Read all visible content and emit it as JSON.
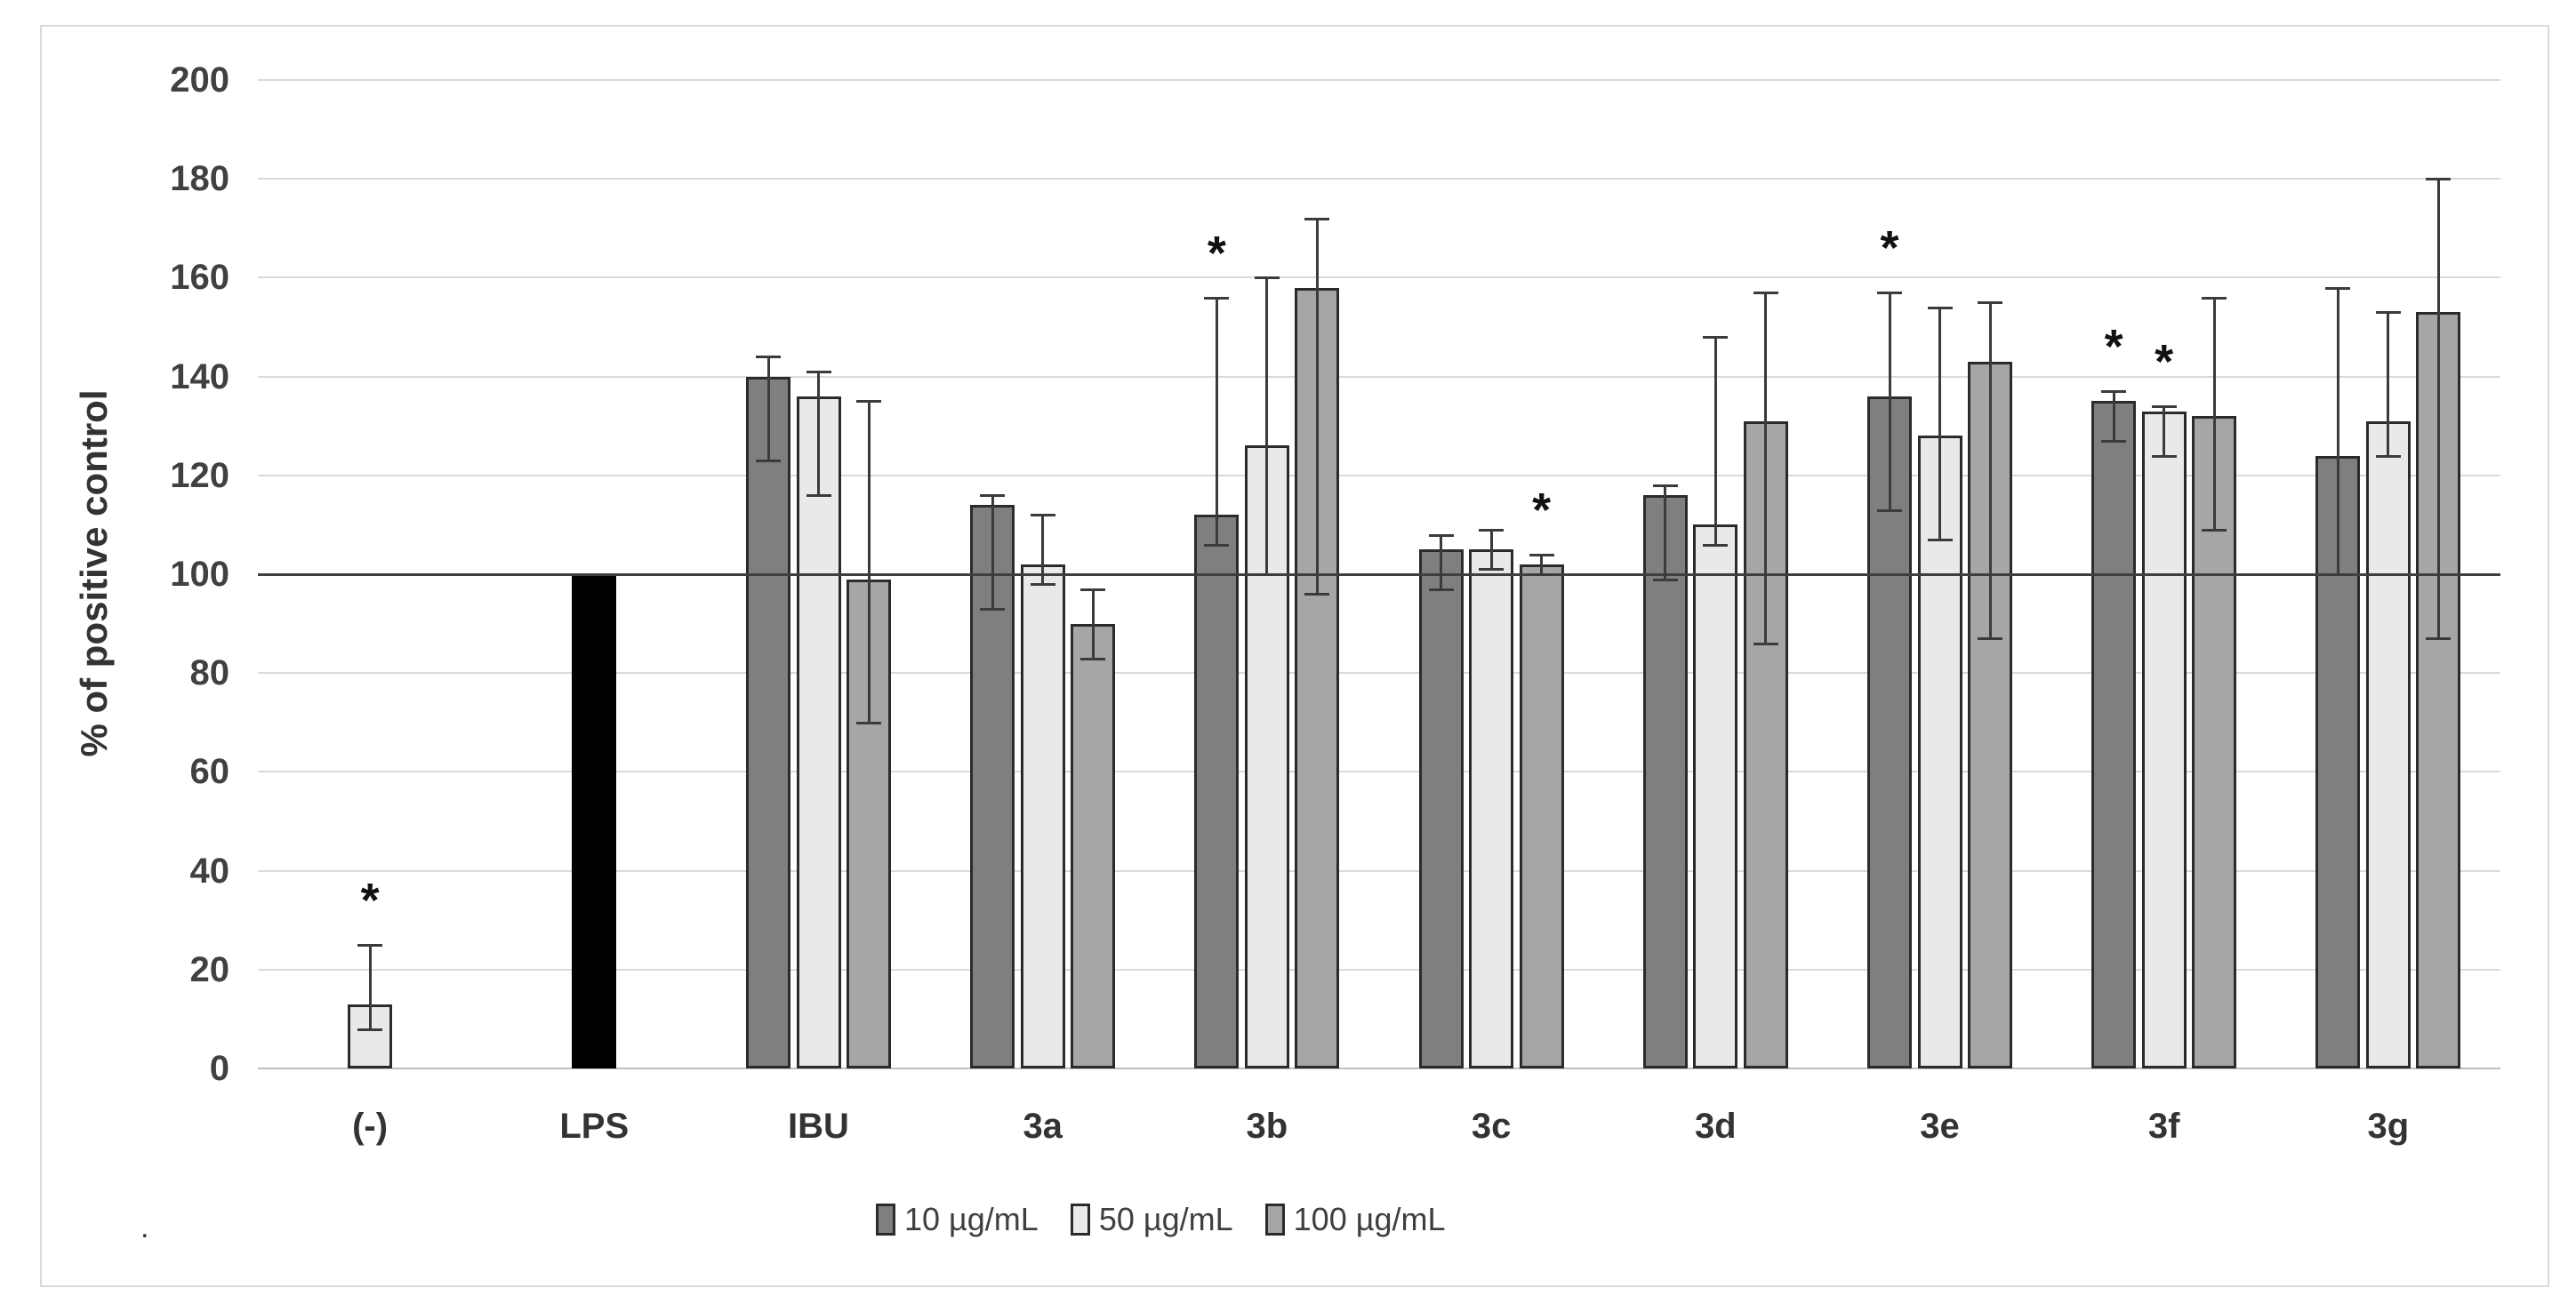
{
  "figure": {
    "stray_mark": "."
  },
  "y_axis": {
    "title": "% of positive control",
    "ticks": [
      200,
      180,
      160,
      140,
      120,
      100,
      80,
      60,
      40,
      20,
      0
    ],
    "min": 0,
    "max": 200,
    "reference_value": 100
  },
  "x_axis": {
    "categories": [
      "(-)",
      "LPS",
      "IBU",
      "3a",
      "3b",
      "3c",
      "3d",
      "3e",
      "3f",
      "3g"
    ]
  },
  "legend": {
    "items": [
      {
        "label": "10 µg/mL",
        "color": "#7f7f7f"
      },
      {
        "label": "50 µg/mL",
        "color": "#e9e9e9"
      },
      {
        "label": "100 µg/mL",
        "color": "#a6a6a6"
      }
    ]
  },
  "colors": {
    "series_10": "#7f7f7f",
    "series_50": "#e9e9e9",
    "series_100": "#a6a6a6",
    "lps_bar": "#000000",
    "bar_border": "#2b2b2b",
    "grid": "#d9d9d9",
    "reference_line": "#3f3f3f",
    "error_bar": "#3b3b3b",
    "text": "#404040",
    "frame": "#d9d9d9"
  },
  "chart_data": {
    "type": "bar",
    "title": "",
    "xlabel": "",
    "ylabel": "% of positive control",
    "ylim": [
      0,
      200
    ],
    "grid": true,
    "legend_position": "bottom",
    "reference_line": 100,
    "significance_marker": "*",
    "categories": [
      "(-)",
      "LPS",
      "IBU",
      "3a",
      "3b",
      "3c",
      "3d",
      "3e",
      "3f",
      "3g"
    ],
    "series": [
      {
        "name": "10 µg/mL",
        "color": "#7f7f7f",
        "values": [
          null,
          null,
          140,
          114,
          112,
          105,
          116,
          136,
          135,
          124
        ],
        "err_lo": [
          null,
          null,
          123,
          93,
          106,
          97,
          99,
          113,
          127,
          100
        ],
        "err_hi": [
          null,
          null,
          144,
          116,
          156,
          108,
          118,
          157,
          137,
          158
        ],
        "sig": [
          false,
          false,
          false,
          false,
          true,
          false,
          false,
          true,
          true,
          false
        ]
      },
      {
        "name": "50 µg/mL",
        "color": "#e9e9e9",
        "values": [
          13,
          null,
          136,
          102,
          126,
          105,
          110,
          128,
          133,
          131
        ],
        "err_lo": [
          8,
          null,
          116,
          98,
          100,
          101,
          106,
          107,
          124,
          124
        ],
        "err_hi": [
          25,
          null,
          141,
          112,
          160,
          109,
          148,
          154,
          134,
          153
        ],
        "sig": [
          true,
          false,
          false,
          false,
          false,
          false,
          false,
          false,
          true,
          false
        ]
      },
      {
        "name": "100 µg/mL",
        "color": "#a6a6a6",
        "values": [
          null,
          null,
          99,
          90,
          158,
          102,
          131,
          143,
          132,
          153
        ],
        "err_lo": [
          null,
          null,
          70,
          83,
          96,
          100,
          86,
          87,
          109,
          87
        ],
        "err_hi": [
          null,
          null,
          135,
          97,
          172,
          104,
          157,
          155,
          156,
          180
        ],
        "sig": [
          false,
          false,
          false,
          false,
          false,
          true,
          false,
          false,
          false,
          false
        ]
      }
    ],
    "control_bar": {
      "category": "LPS",
      "value": 100,
      "color": "#000000"
    }
  }
}
